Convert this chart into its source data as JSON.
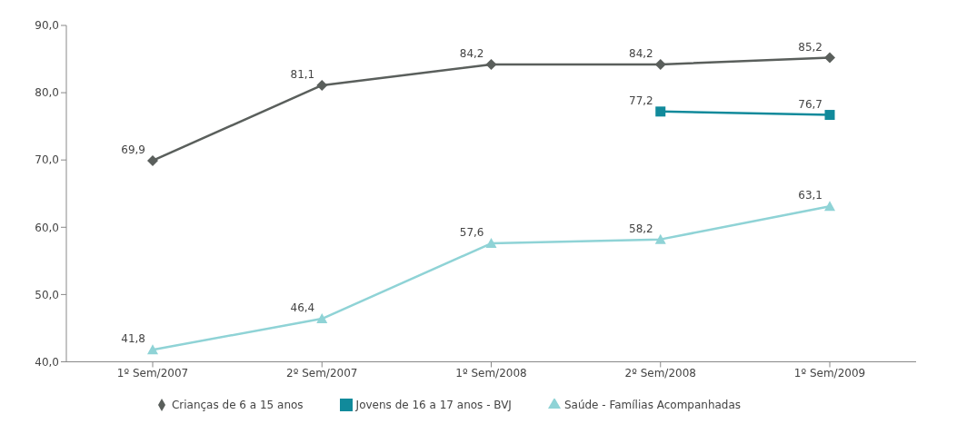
{
  "chart_data": {
    "type": "line",
    "categories": [
      "1º Sem/2007",
      "2º Sem/2007",
      "1º Sem/2008",
      "2º Sem/2008",
      "1º Sem/2009"
    ],
    "series": [
      {
        "name": "Crianças de 6 a 15 anos",
        "color": "#5a5f5c",
        "marker": "diamond",
        "values": [
          69.9,
          81.1,
          84.2,
          84.2,
          85.2
        ],
        "value_labels": [
          "69,9",
          "81,1",
          "84,2",
          "84,2",
          "85,2"
        ]
      },
      {
        "name": "Jovens de 16 a 17 anos - BVJ",
        "color": "#118a9b",
        "marker": "square",
        "values": [
          null,
          null,
          null,
          77.2,
          76.7
        ],
        "value_labels": [
          null,
          null,
          null,
          "77,2",
          "76,7"
        ]
      },
      {
        "name": "Saúde - Famílias Acompanhadas",
        "color": "#8fd3d6",
        "marker": "triangle",
        "values": [
          41.8,
          46.4,
          57.6,
          58.2,
          63.1
        ],
        "value_labels": [
          "41,8",
          "46,4",
          "57,6",
          "58,2",
          "63,1"
        ]
      }
    ],
    "ylim": [
      40,
      90
    ],
    "yticks": [
      {
        "value": 40,
        "label": "40,0"
      },
      {
        "value": 50,
        "label": "50,0"
      },
      {
        "value": 60,
        "label": "60,0"
      },
      {
        "value": 70,
        "label": "70,0"
      },
      {
        "value": 80,
        "label": "80,0"
      },
      {
        "value": 90,
        "label": "90,0"
      }
    ],
    "grid": false,
    "legend": "bottom",
    "line_style": "solid"
  }
}
